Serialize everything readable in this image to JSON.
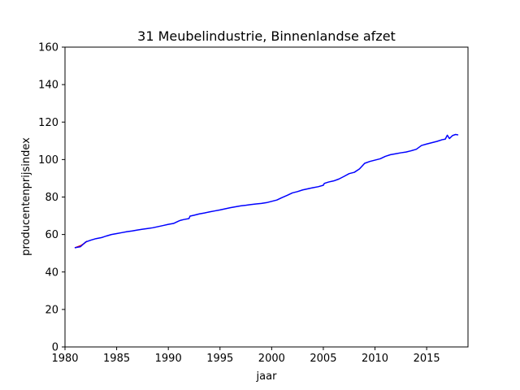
{
  "chart_data": {
    "type": "line",
    "title": "31 Meubelindustrie, Binnenlandse afzet",
    "xlabel": "jaar",
    "ylabel": "producentenprijsindex",
    "xlim": [
      1980,
      2019
    ],
    "ylim": [
      0,
      160
    ],
    "xticks": [
      1980,
      1985,
      1990,
      1995,
      2000,
      2005,
      2010,
      2015
    ],
    "yticks": [
      0,
      20,
      40,
      60,
      80,
      100,
      120,
      140,
      160
    ],
    "grid": false,
    "legend": "none",
    "series": [
      {
        "color": "#ff0000",
        "x": [
          1981.0,
          1981.3,
          1981.6,
          1981.9,
          1982.1
        ],
        "y": [
          53.0,
          53.6,
          54.3,
          55.4,
          56.3
        ]
      },
      {
        "color": "#0000ff",
        "x": [
          1981.0,
          1981.5,
          1982.0,
          1982.5,
          1983.0,
          1983.5,
          1984.0,
          1984.5,
          1985.0,
          1985.5,
          1986.0,
          1986.5,
          1987.0,
          1987.5,
          1988.0,
          1988.5,
          1989.0,
          1989.5,
          1990.0,
          1990.5,
          1991.0,
          1991.2,
          1991.5,
          1992.0,
          1992.1,
          1992.5,
          1993.0,
          1993.5,
          1994.0,
          1994.5,
          1995.0,
          1995.5,
          1996.0,
          1996.5,
          1997.0,
          1997.5,
          1998.0,
          1998.5,
          1999.0,
          1999.5,
          2000.0,
          2000.5,
          2001.0,
          2001.5,
          2002.0,
          2002.5,
          2003.0,
          2003.5,
          2004.0,
          2004.5,
          2005.0,
          2005.1,
          2005.5,
          2006.0,
          2006.5,
          2007.0,
          2007.5,
          2008.0,
          2008.5,
          2009.0,
          2009.5,
          2010.0,
          2010.5,
          2011.0,
          2011.5,
          2012.0,
          2012.5,
          2013.0,
          2013.5,
          2014.0,
          2014.5,
          2015.0,
          2015.5,
          2016.0,
          2016.5,
          2016.8,
          2017.0,
          2017.2,
          2017.5,
          2017.8,
          2018.0
        ],
        "y": [
          53.0,
          53.5,
          56.0,
          57.0,
          57.8,
          58.3,
          59.2,
          60.0,
          60.5,
          61.0,
          61.5,
          61.9,
          62.4,
          62.8,
          63.2,
          63.6,
          64.2,
          64.8,
          65.4,
          65.9,
          67.2,
          67.6,
          68.0,
          68.5,
          69.8,
          70.3,
          71.0,
          71.5,
          72.1,
          72.6,
          73.1,
          73.7,
          74.3,
          74.8,
          75.3,
          75.6,
          76.0,
          76.3,
          76.6,
          77.0,
          77.7,
          78.4,
          79.7,
          80.9,
          82.2,
          82.9,
          83.8,
          84.4,
          85.0,
          85.5,
          86.3,
          87.3,
          88.0,
          88.6,
          89.6,
          91.0,
          92.5,
          93.2,
          95.0,
          98.0,
          99.0,
          99.7,
          100.4,
          101.7,
          102.6,
          103.1,
          103.6,
          104.0,
          104.7,
          105.5,
          107.5,
          108.3,
          109.0,
          109.7,
          110.6,
          110.9,
          113.0,
          111.2,
          112.8,
          113.4,
          113.2
        ]
      }
    ]
  }
}
